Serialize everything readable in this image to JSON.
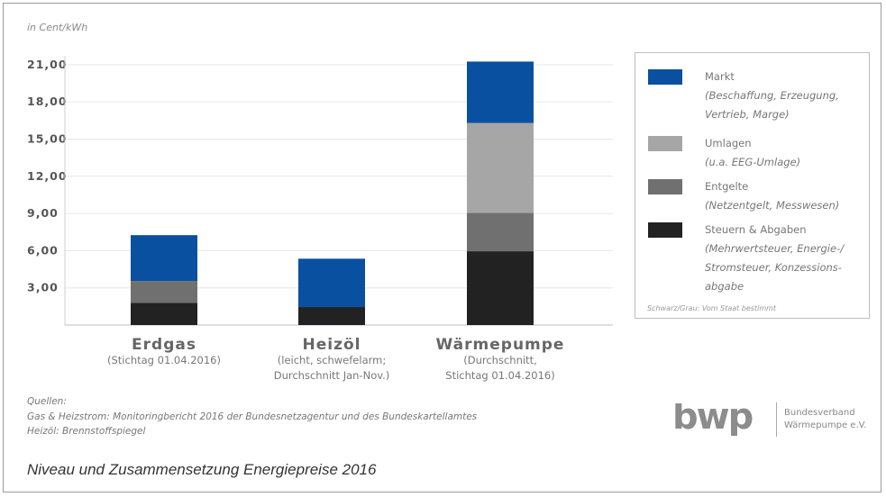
{
  "chart_data": {
    "type": "bar",
    "stacked": true,
    "unit_label": "in Cent/kWh",
    "ylim": [
      0,
      22.5
    ],
    "yticks": [
      "3,00",
      "6,00",
      "9,00",
      "12,00",
      "15,00",
      "18,00",
      "21,00"
    ],
    "ytick_values": [
      3,
      6,
      9,
      12,
      15,
      18,
      21
    ],
    "grid": true,
    "legend_position": "right",
    "categories": [
      {
        "name": "Erdgas",
        "sub": [
          "(Stichtag 01.04.2016)"
        ]
      },
      {
        "name": "Heizöl",
        "sub": [
          "(leicht, schwefelarm;",
          "Durchschnitt Jan-Nov.)"
        ]
      },
      {
        "name": "Wärmepumpe",
        "sub": [
          "(Durchschnitt,",
          "Stichtag 01.04.2016)"
        ]
      }
    ],
    "series": [
      {
        "name": "Steuern & Abgaben",
        "color": "#222222",
        "values": [
          1.8,
          1.45,
          5.95
        ]
      },
      {
        "name": "Entgelte",
        "color": "#707070",
        "values": [
          1.75,
          0,
          3.1
        ]
      },
      {
        "name": "Umlagen",
        "color": "#a6a6a6",
        "values": [
          0,
          0,
          7.25
        ]
      },
      {
        "name": "Markt",
        "color": "#0a50a0",
        "values": [
          3.7,
          3.9,
          4.95
        ]
      }
    ]
  },
  "legend": {
    "items": [
      {
        "name": "Markt",
        "desc": [
          "(Beschaffung, Erzeugung,",
          "Vertrieb, Marge)"
        ],
        "color": "#0a50a0"
      },
      {
        "name": "Umlagen",
        "desc": [
          "(u.a. EEG-Umlage)"
        ],
        "color": "#a6a6a6"
      },
      {
        "name": "Entgelte",
        "desc": [
          "(Netzentgelt, Messwesen)"
        ],
        "color": "#707070"
      },
      {
        "name": "Steuern & Abgaben",
        "desc": [
          "(Mehrwertsteuer, Energie-/",
          "Stromsteuer, Konzessions-",
          "abgabe"
        ],
        "color": "#222222"
      }
    ],
    "note": "Schwarz/Grau: Vom Staat bestimmt"
  },
  "sources": {
    "heading": "Quellen:",
    "line1": "Gas & Heizstrom: Monitoringbericht 2016 der Bundesnetzagentur und des Bundeskartellamtes",
    "line2": "Heizöl: Brennstoffspiegel"
  },
  "caption": "Niveau und Zusammensetzung Energiepreise 2016",
  "logo": {
    "mark": "bwp",
    "line1": "Bundesverband",
    "line2": "Wärmepumpe e.V.",
    "color": "#8c8c8c"
  }
}
